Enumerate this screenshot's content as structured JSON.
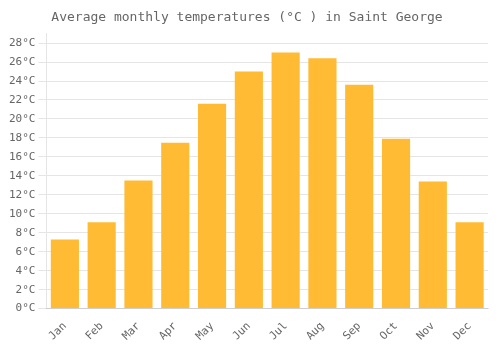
{
  "chart_data": {
    "type": "bar",
    "title": "Average monthly temperatures (°C ) in Saint George",
    "categories": [
      "Jan",
      "Feb",
      "Mar",
      "Apr",
      "May",
      "Jun",
      "Jul",
      "Aug",
      "Sep",
      "Oct",
      "Nov",
      "Dec"
    ],
    "values": [
      7.3,
      9.1,
      13.5,
      17.5,
      21.6,
      25.0,
      27.0,
      26.4,
      23.6,
      17.9,
      13.4,
      9.1
    ],
    "color": "#FFBB33",
    "ylim": [
      0,
      29
    ],
    "yticks": [
      {
        "value": 0,
        "label": "0°C"
      },
      {
        "value": 2,
        "label": "2°C"
      },
      {
        "value": 4,
        "label": "4°C"
      },
      {
        "value": 6,
        "label": "6°C"
      },
      {
        "value": 8,
        "label": "8°C"
      },
      {
        "value": 10,
        "label": "10°C"
      },
      {
        "value": 12,
        "label": "12°C"
      },
      {
        "value": 14,
        "label": "14°C"
      },
      {
        "value": 16,
        "label": "16°C"
      },
      {
        "value": 18,
        "label": "18°C"
      },
      {
        "value": 20,
        "label": "20°C"
      },
      {
        "value": 22,
        "label": "22°C"
      },
      {
        "value": 24,
        "label": "24°C"
      },
      {
        "value": 26,
        "label": "26°C"
      },
      {
        "value": 28,
        "label": "28°C"
      }
    ],
    "grid": true
  }
}
